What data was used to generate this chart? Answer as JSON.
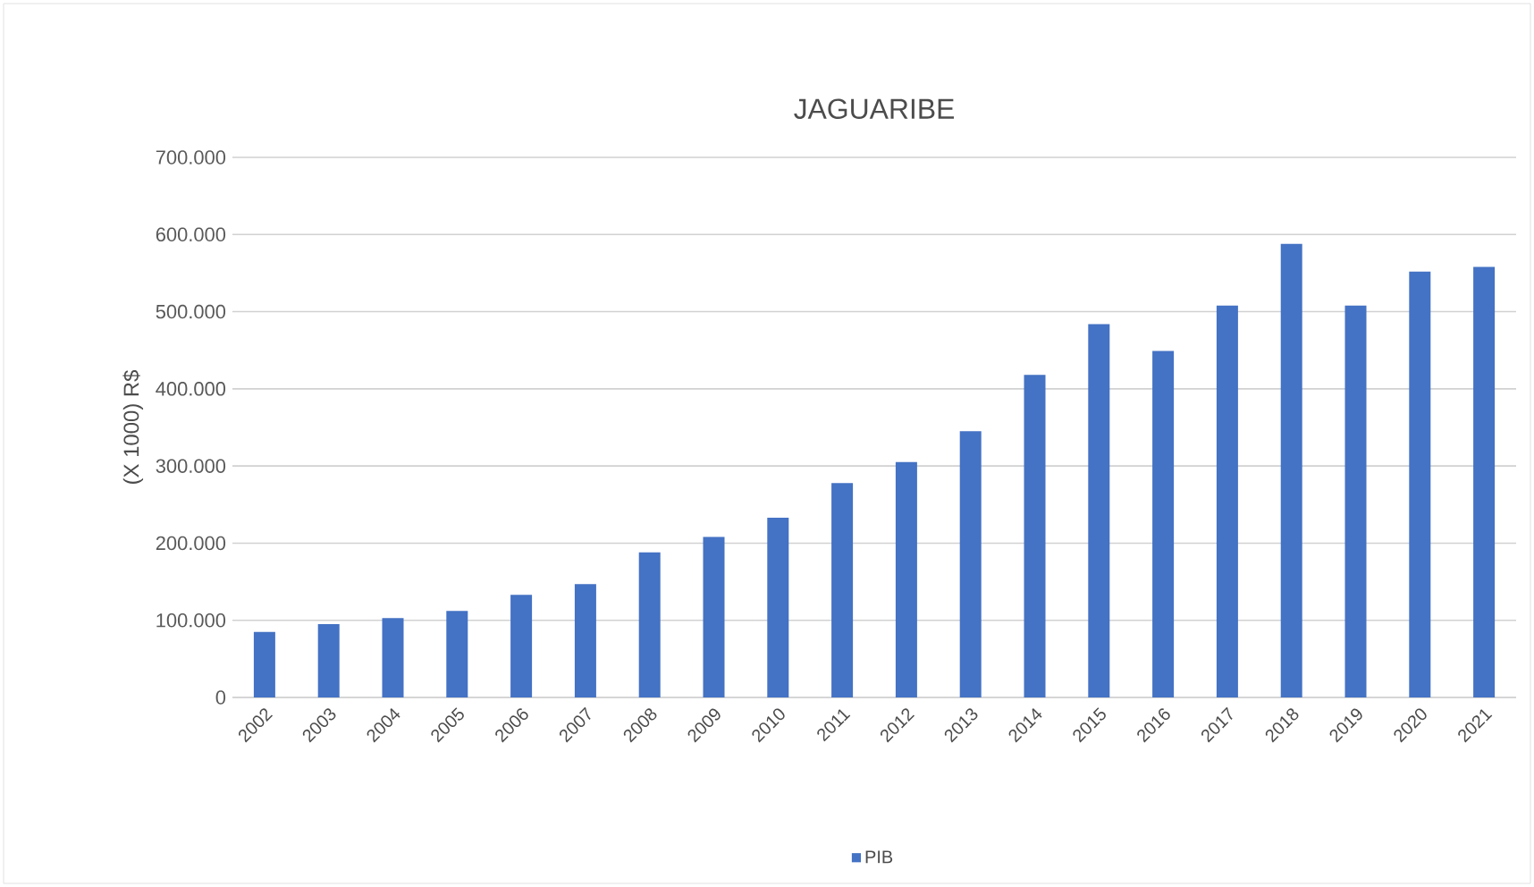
{
  "chart_data": {
    "type": "bar",
    "title": "JAGUARIBE",
    "ylabel": "(X 1000) R$",
    "categories": [
      "2002",
      "2003",
      "2004",
      "2005",
      "2006",
      "2007",
      "2008",
      "2009",
      "2010",
      "2011",
      "2012",
      "2013",
      "2014",
      "2015",
      "2016",
      "2017",
      "2018",
      "2019",
      "2020",
      "2021"
    ],
    "series": [
      {
        "name": "PIB",
        "color": "#4472c4",
        "values": [
          85000,
          95000,
          103000,
          112000,
          133000,
          147000,
          188000,
          208000,
          233000,
          278000,
          305000,
          345000,
          418000,
          484000,
          449000,
          508000,
          588000,
          508000,
          552000,
          558000
        ]
      }
    ],
    "ylim": [
      0,
      700000
    ],
    "yticks": [
      {
        "value": 0,
        "label": "0"
      },
      {
        "value": 100000,
        "label": "100.000"
      },
      {
        "value": 200000,
        "label": "200.000"
      },
      {
        "value": 300000,
        "label": "300.000"
      },
      {
        "value": 400000,
        "label": "400.000"
      },
      {
        "value": 500000,
        "label": "500.000"
      },
      {
        "value": 600000,
        "label": "600.000"
      },
      {
        "value": 700000,
        "label": "700.000"
      }
    ],
    "grid": "y",
    "legend": "bottom"
  }
}
